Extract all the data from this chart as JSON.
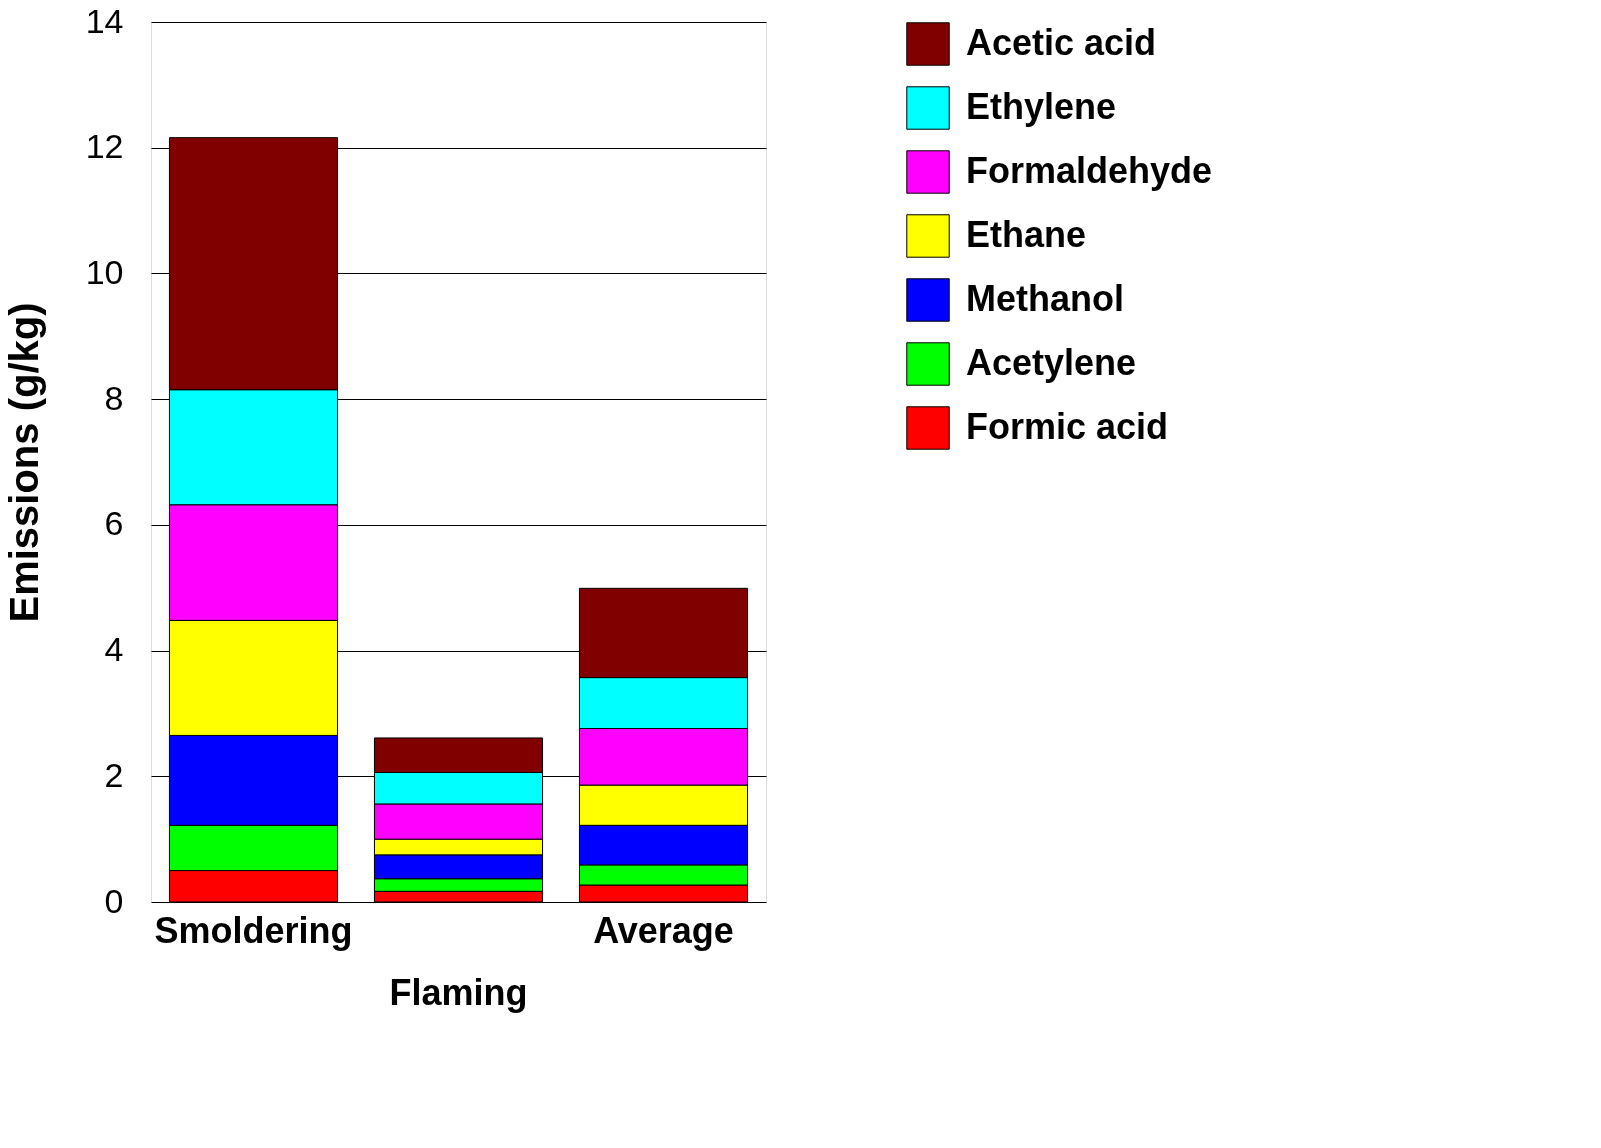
{
  "chart_data": {
    "type": "bar",
    "stacked": true,
    "ylabel": "Emissions (g/kg)",
    "categories": [
      "Smoldering",
      "Flaming",
      "Average"
    ],
    "series": [
      {
        "name": "Formic acid",
        "color": "#ff0000",
        "values": [
          0.5,
          0.17,
          0.27
        ]
      },
      {
        "name": "Acetylene",
        "color": "#00ff00",
        "values": [
          0.72,
          0.2,
          0.32
        ]
      },
      {
        "name": "Methanol",
        "color": "#0000ff",
        "values": [
          1.43,
          0.38,
          0.63
        ]
      },
      {
        "name": "Ethane",
        "color": "#ffff00",
        "values": [
          1.83,
          0.25,
          0.64
        ]
      },
      {
        "name": "Formaldehyde",
        "color": "#ff00ff",
        "values": [
          1.84,
          0.56,
          0.9
        ]
      },
      {
        "name": "Ethylene",
        "color": "#00ffff",
        "values": [
          1.83,
          0.5,
          0.81
        ]
      },
      {
        "name": "Acetic acid",
        "color": "#800000",
        "values": [
          4.01,
          0.55,
          1.42
        ]
      }
    ],
    "ylim": [
      0,
      14
    ],
    "yticks": [
      0,
      2,
      4,
      6,
      8,
      10,
      12,
      14
    ],
    "grid": "y",
    "legend": "right"
  }
}
